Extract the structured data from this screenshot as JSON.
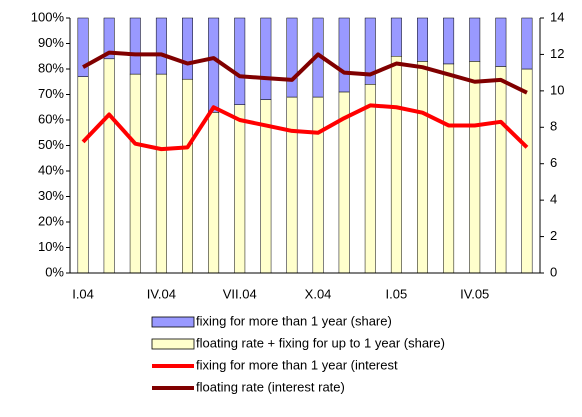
{
  "chart_data": {
    "type": "bar",
    "categories": [
      "I.04",
      null,
      null,
      "IV.04",
      null,
      null,
      "VII.04",
      null,
      null,
      "X.04",
      null,
      null,
      "I.05",
      null,
      null,
      "IV.05",
      null,
      null
    ],
    "series": [
      {
        "name": "fixing for more than 1 year (share)",
        "type": "bar",
        "color": "#9999ff",
        "values": [
          23,
          16,
          22,
          22,
          24,
          37,
          34,
          32,
          31,
          31,
          29,
          26,
          15,
          17,
          18,
          17,
          19,
          20
        ]
      },
      {
        "name": "floating rate + fixing for up to 1 year (share)",
        "type": "bar",
        "color": "#ffffcc",
        "values": [
          77,
          84,
          78,
          78,
          76,
          63,
          66,
          68,
          69,
          69,
          71,
          74,
          85,
          83,
          82,
          83,
          81,
          80
        ]
      },
      {
        "name": "fixing for more than 1 year (interest",
        "type": "line",
        "axis": "y2",
        "color": "#ff0000",
        "values": [
          7.2,
          8.7,
          7.1,
          6.8,
          6.9,
          9.1,
          8.4,
          8.1,
          7.8,
          7.7,
          8.5,
          9.2,
          9.1,
          8.8,
          8.1,
          8.1,
          8.3,
          6.9
        ]
      },
      {
        "name": "floating rate (interest rate)",
        "type": "line",
        "axis": "y2",
        "color": "#800000",
        "values": [
          11.3,
          12.1,
          12.0,
          12.0,
          11.5,
          11.8,
          10.8,
          10.7,
          10.6,
          12.0,
          11.0,
          10.9,
          11.5,
          11.3,
          10.9,
          10.5,
          10.6,
          9.9
        ]
      }
    ],
    "ylim": [
      0,
      100
    ],
    "yticks": [
      {
        "value": 0,
        "label": "0%"
      },
      {
        "value": 10,
        "label": "10%"
      },
      {
        "value": 20,
        "label": "20%"
      },
      {
        "value": 30,
        "label": "30%"
      },
      {
        "value": 40,
        "label": "40%"
      },
      {
        "value": 50,
        "label": "50%"
      },
      {
        "value": 60,
        "label": "60%"
      },
      {
        "value": 70,
        "label": "70%"
      },
      {
        "value": 80,
        "label": "80%"
      },
      {
        "value": 90,
        "label": "90%"
      },
      {
        "value": 100,
        "label": "100%"
      }
    ],
    "y2lim": [
      0,
      14
    ],
    "y2ticks": [
      0,
      2,
      4,
      6,
      8,
      10,
      12,
      14
    ]
  }
}
